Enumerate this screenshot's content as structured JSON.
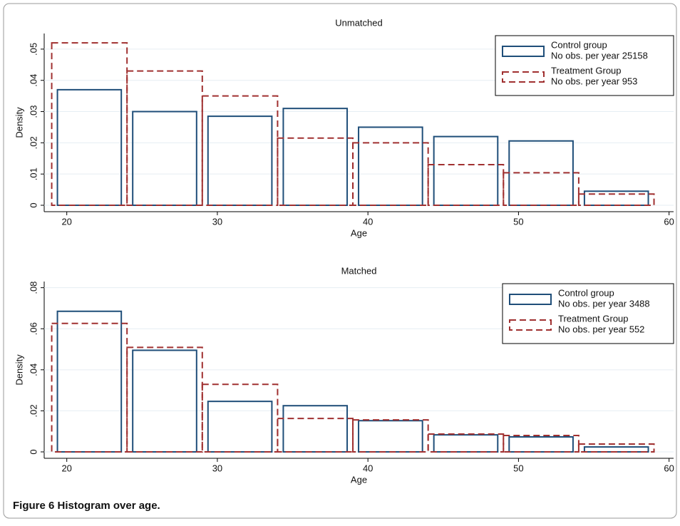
{
  "chart_data": [
    {
      "type": "histogram",
      "title": "Unmatched",
      "xlabel": "Age",
      "ylabel": "Density",
      "bins": [
        19,
        24,
        29,
        34,
        39,
        44,
        49,
        54,
        59
      ],
      "series": [
        {
          "name": "Control group",
          "legend_note": "No obs. per year 25158",
          "color": "#1f4e79",
          "values": [
            0.037,
            0.03,
            0.0285,
            0.031,
            0.025,
            0.022,
            0.0206,
            0.0045
          ]
        },
        {
          "name": "Treatment Group",
          "legend_note": "No obs. per year 953",
          "color": "#a03030",
          "values": [
            0.052,
            0.043,
            0.035,
            0.0215,
            0.02,
            0.013,
            0.0104,
            0.0036
          ]
        }
      ],
      "xlim": [
        18.5,
        60.3
      ],
      "xticks": [
        20,
        30,
        40,
        50,
        60
      ],
      "ylim": [
        0,
        0.055
      ],
      "yticks": [
        0,
        {
          "value": 0.01,
          "label": ".01"
        },
        {
          "value": 0.02,
          "label": ".02"
        },
        {
          "value": 0.03,
          "label": ".03"
        },
        {
          "value": 0.04,
          "label": ".04"
        },
        {
          "value": 0.05,
          "label": ".05"
        }
      ],
      "grid": true,
      "legend": "top-right"
    },
    {
      "type": "histogram",
      "title": "Matched",
      "xlabel": "Age",
      "ylabel": "Density",
      "bins": [
        19,
        24,
        29,
        34,
        39,
        44,
        49,
        54,
        59
      ],
      "series": [
        {
          "name": "Control group",
          "legend_note": "No obs. per year 3488",
          "color": "#1f4e79",
          "values": [
            0.0685,
            0.0495,
            0.0246,
            0.0225,
            0.0152,
            0.0083,
            0.0073,
            0.0024
          ]
        },
        {
          "name": "Treatment Group",
          "legend_note": "No obs. per year 552",
          "color": "#a03030",
          "values": [
            0.0626,
            0.0509,
            0.0329,
            0.0163,
            0.0156,
            0.0087,
            0.008,
            0.0038
          ]
        }
      ],
      "xlim": [
        18.5,
        60.3
      ],
      "xticks": [
        20,
        30,
        40,
        50,
        60
      ],
      "ylim": [
        0,
        0.083
      ],
      "yticks": [
        0,
        {
          "value": 0.02,
          "label": ".02"
        },
        {
          "value": 0.04,
          "label": ".04"
        },
        {
          "value": 0.06,
          "label": ".06"
        },
        {
          "value": 0.08,
          "label": ".08"
        }
      ],
      "grid": true,
      "legend": "top-right"
    }
  ],
  "caption": "Figure 6 Histogram over age."
}
